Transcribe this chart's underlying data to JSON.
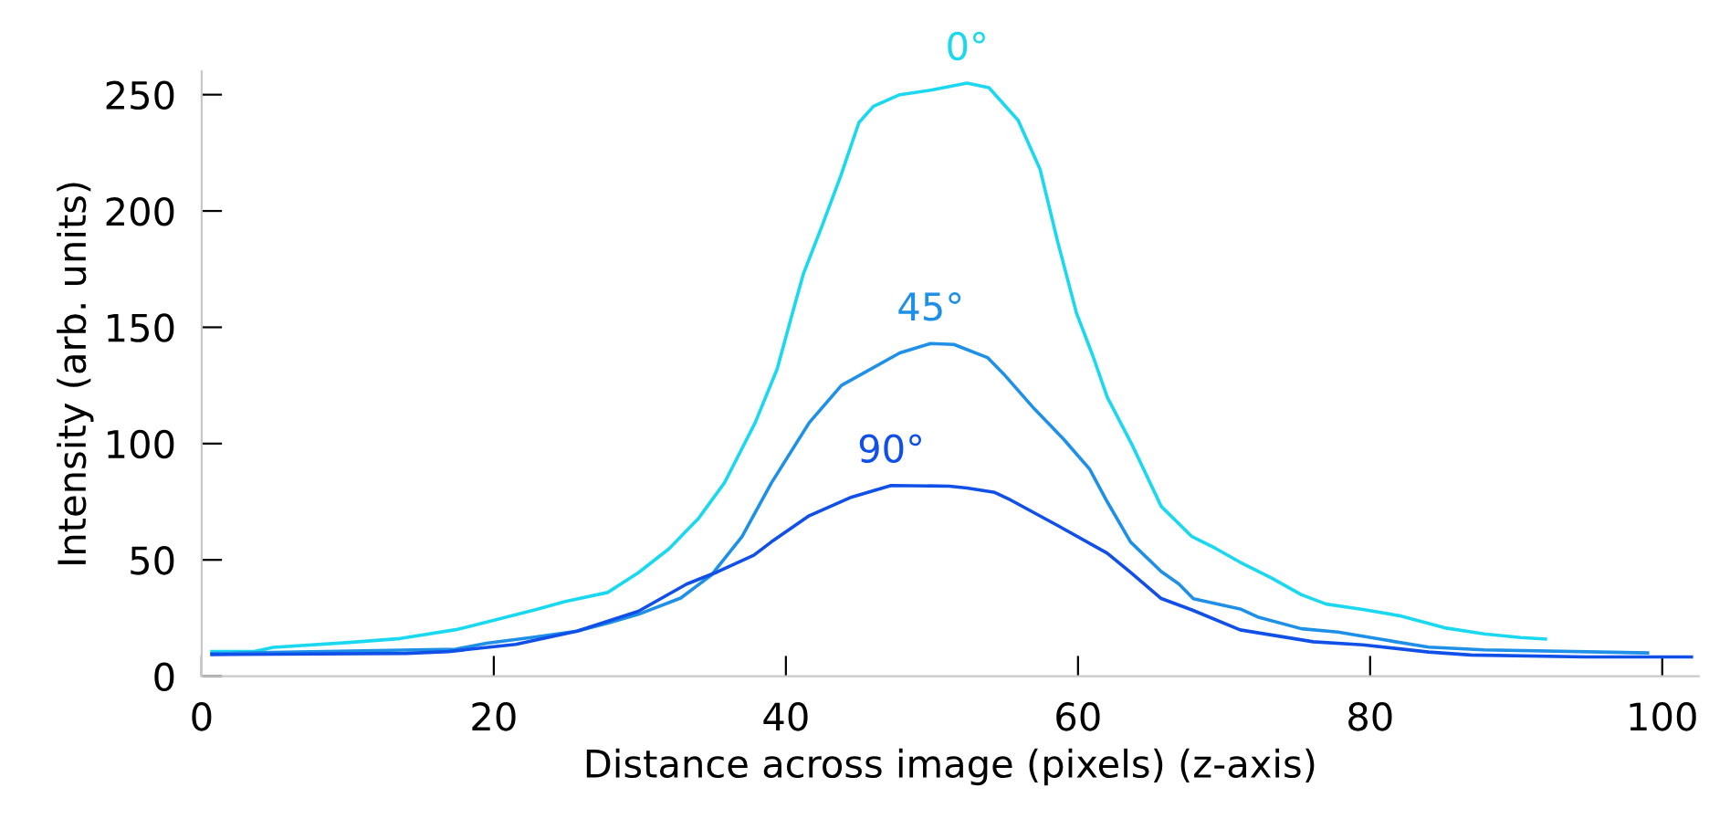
{
  "chart_data": {
    "type": "line",
    "xlabel": "Distance across image (pixels) (z-axis)",
    "ylabel": "Intensity (arb. units)",
    "xlim": [
      0,
      102.5
    ],
    "ylim": [
      0,
      260
    ],
    "xticks": [
      0,
      20,
      40,
      60,
      80,
      100
    ],
    "yticks": [
      0,
      50,
      100,
      150,
      200,
      250
    ],
    "grid": false,
    "legend": false,
    "marker": "none",
    "line_style": "solid",
    "series": [
      {
        "name": "0°",
        "color": "#1ad8f0",
        "x": [
          0.7,
          3.6,
          4.9,
          9.9,
          13.6,
          17.4,
          19.1,
          22.8,
          24.9,
          27.8,
          29.9,
          32,
          34,
          35.8,
          37.9,
          39.4,
          40.4,
          41.2,
          42.5,
          43.75,
          45,
          46,
          47.8,
          50,
          52.4,
          53.9,
          55.9,
          57.4,
          58.6,
          59.9,
          61,
          62,
          63.7,
          65.7,
          67.8,
          69.4,
          71.1,
          73.2,
          75.3,
          77,
          79.5,
          82,
          85.1,
          87.8,
          90.3,
          92
        ],
        "values": [
          10.6,
          10.6,
          12.4,
          14.4,
          16.2,
          20,
          22.6,
          28.5,
          32.1,
          36,
          44.5,
          54.8,
          67.7,
          83.2,
          109,
          132,
          155,
          173,
          194,
          215,
          238,
          245,
          250,
          252,
          255,
          253,
          239,
          218,
          187,
          156,
          138,
          120,
          99.5,
          73,
          60,
          55,
          49,
          42.4,
          35,
          31,
          28.7,
          26,
          20.8,
          18.2,
          16.6,
          16
        ]
      },
      {
        "name": "45°",
        "color": "#1e90e8",
        "x": [
          0.7,
          17.4,
          19.5,
          22.8,
          25.7,
          27.8,
          29.9,
          32.8,
          34.9,
          37,
          39,
          41.6,
          43.8,
          47.8,
          49.9,
          51.5,
          53.8,
          54.9,
          57,
          59,
          60.8,
          62,
          63.6,
          65.7,
          66.9,
          67.9,
          71.1,
          72.3,
          75.3,
          77.8,
          80.7,
          84,
          87.8,
          99
        ],
        "values": [
          9.8,
          11.6,
          14.2,
          16.8,
          19.4,
          22.8,
          26.6,
          33.6,
          43.5,
          60,
          83,
          109,
          125,
          139,
          143,
          142.6,
          137,
          130,
          115,
          102,
          89,
          75,
          57.7,
          45,
          39.7,
          33.3,
          28.9,
          25.5,
          20.4,
          19,
          15.9,
          12.5,
          11.3,
          10
        ]
      },
      {
        "name": "90°",
        "color": "#1050e8",
        "x": [
          0.7,
          14,
          16.9,
          21.5,
          25.7,
          29.9,
          33.2,
          35.3,
          37.8,
          39,
          41.6,
          44.5,
          47.2,
          51.2,
          52.4,
          54.3,
          55.4,
          58.6,
          62,
          63.6,
          65.7,
          67.8,
          71.1,
          76.1,
          79.5,
          84,
          86.9,
          94.8,
          102
        ],
        "values": [
          9.3,
          9.8,
          10.6,
          13.7,
          19.4,
          27.9,
          39.6,
          44.8,
          52,
          57.7,
          69,
          77,
          82,
          81.7,
          80.9,
          79,
          75.7,
          64.8,
          52.9,
          44.6,
          33.4,
          28.5,
          19.9,
          14.8,
          13.5,
          10.4,
          9.1,
          8.3,
          8.3
        ]
      }
    ]
  }
}
